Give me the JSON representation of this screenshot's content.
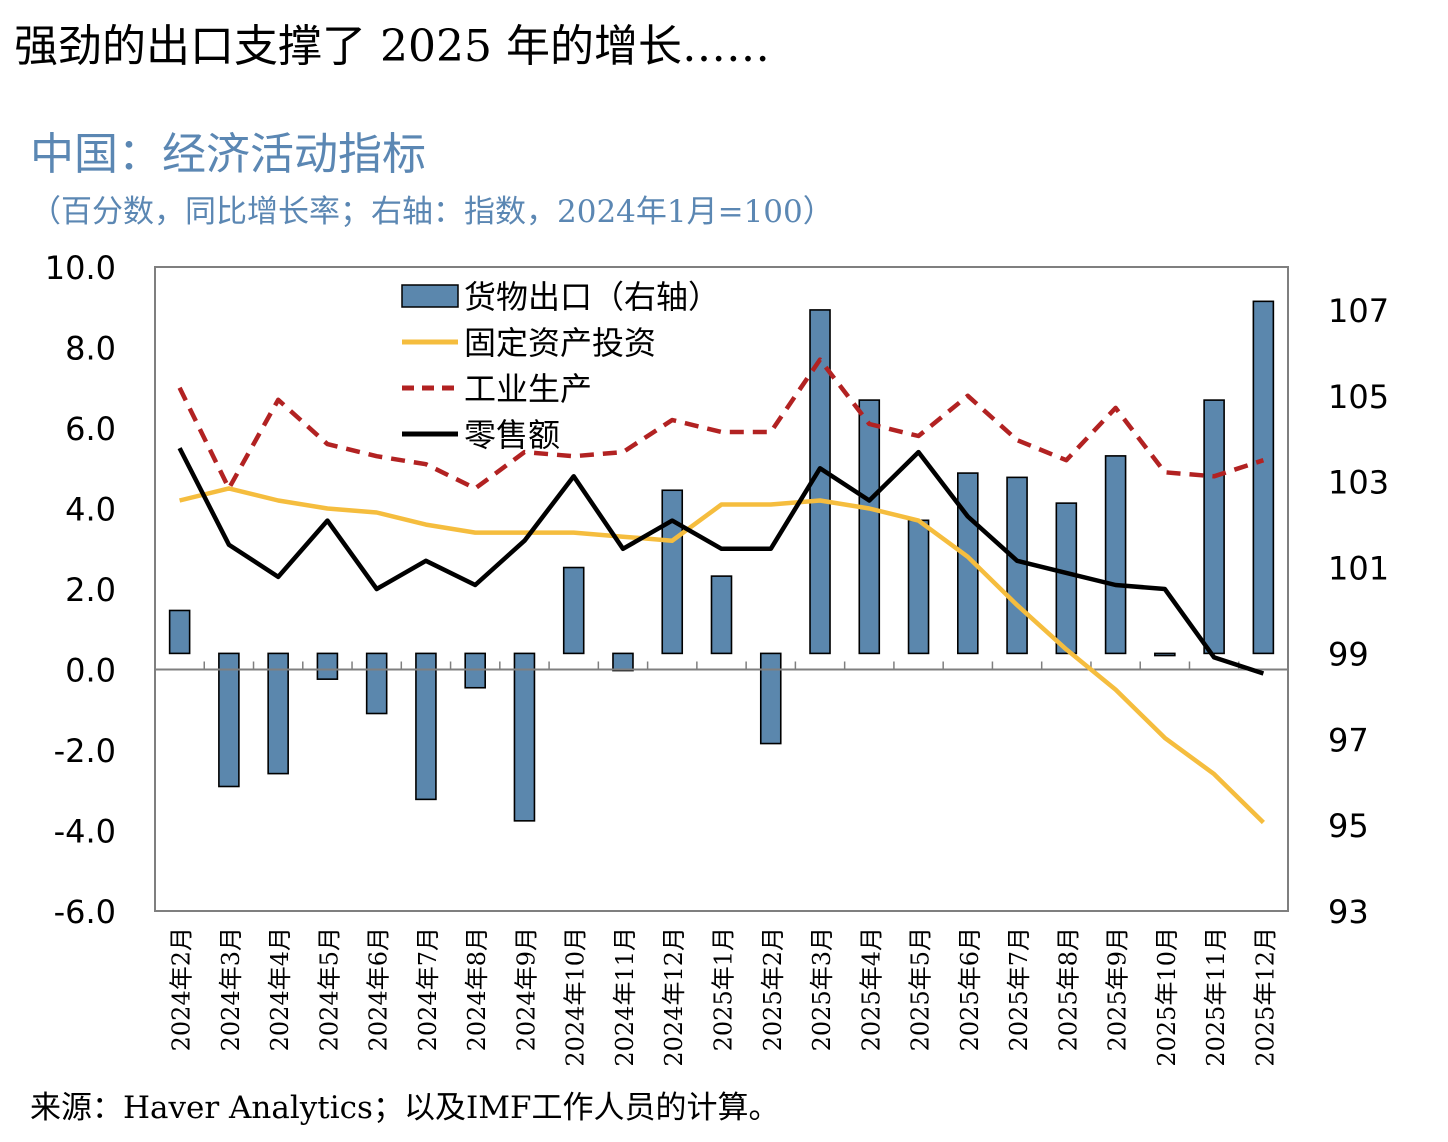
{
  "heading": "强劲的出口支撑了 2025 年的增长……",
  "chart_title": "中国：经济活动指标",
  "chart_subtitle": "（百分数，同比增长率；右轴：指数，2024年1月=100）",
  "source": "来源：Haver Analytics；以及IMF工作人员的计算。",
  "colors": {
    "bar": "#5b87ad",
    "investment": "#f5bd3e",
    "industry": "#b22222",
    "retail": "#000000",
    "title": "#5b87b3"
  },
  "chart_data": {
    "type": "bar+line",
    "categories": [
      "2024年2月",
      "2024年3月",
      "2024年4月",
      "2024年5月",
      "2024年6月",
      "2024年7月",
      "2024年8月",
      "2024年9月",
      "2024年10月",
      "2024年11月",
      "2024年12月",
      "2025年1月",
      "2025年2月",
      "2025年3月",
      "2025年4月",
      "2025年5月",
      "2025年6月",
      "2025年7月",
      "2025年8月",
      "2025年9月",
      "2025年10月",
      "2025年11月",
      "2025年12月"
    ],
    "left_axis": {
      "ylim": [
        -6,
        10
      ],
      "ticks": [
        "10.0",
        "8.0",
        "6.0",
        "4.0",
        "2.0",
        "0.0",
        "-2.0",
        "-4.0",
        "-6.0"
      ]
    },
    "right_axis": {
      "ylim": [
        93,
        108
      ],
      "ticks": [
        "107",
        "105",
        "103",
        "101",
        "99",
        "97",
        "95",
        "93"
      ]
    },
    "grid": false,
    "legend_position": "top-left",
    "series": [
      {
        "name": "货物出口（右轴）",
        "type": "bar",
        "axis": "right",
        "values": [
          100.0,
          95.9,
          96.2,
          98.4,
          97.6,
          95.6,
          98.2,
          95.1,
          101.0,
          98.6,
          102.8,
          100.8,
          96.9,
          107.0,
          104.9,
          102.1,
          103.2,
          103.1,
          102.5,
          103.6,
          98.95,
          104.9,
          107.2
        ]
      },
      {
        "name": "固定资产投资",
        "type": "line",
        "style": "solid",
        "axis": "left",
        "values": [
          4.2,
          4.5,
          4.2,
          4.0,
          3.9,
          3.6,
          3.4,
          3.4,
          3.4,
          3.3,
          3.2,
          4.1,
          4.1,
          4.2,
          4.0,
          3.7,
          2.8,
          1.6,
          0.5,
          -0.5,
          -1.7,
          -2.6,
          -3.8
        ]
      },
      {
        "name": "工业生产",
        "type": "line",
        "style": "dashed",
        "axis": "left",
        "values": [
          7.0,
          4.5,
          6.7,
          5.6,
          5.3,
          5.1,
          4.5,
          5.4,
          5.3,
          5.4,
          6.2,
          5.9,
          5.9,
          7.7,
          6.1,
          5.8,
          6.8,
          5.7,
          5.2,
          6.5,
          4.9,
          4.8,
          5.2
        ]
      },
      {
        "name": "零售额",
        "type": "line",
        "style": "solid",
        "axis": "left",
        "values": [
          5.5,
          3.1,
          2.3,
          3.7,
          2.0,
          2.7,
          2.1,
          3.2,
          4.8,
          3.0,
          3.7,
          3.0,
          3.0,
          5.0,
          4.2,
          5.4,
          3.8,
          2.7,
          2.4,
          2.1,
          2.0,
          0.3,
          -0.1
        ]
      }
    ]
  }
}
